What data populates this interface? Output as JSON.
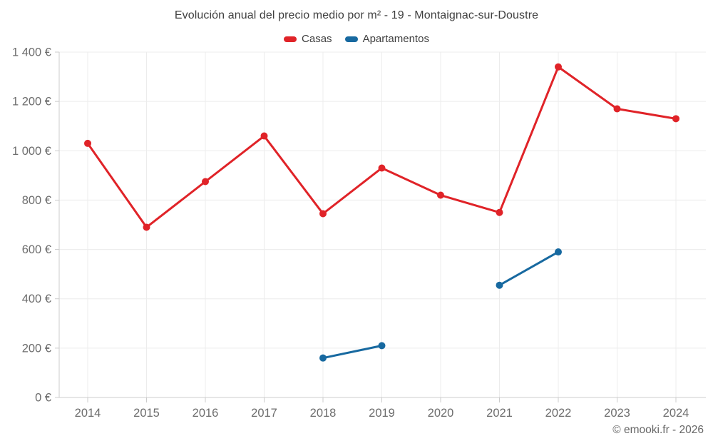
{
  "title": "Evolución anual del precio medio por m² - 19 - Montaignac-sur-Doustre",
  "attribution": "© emooki.fr - 2026",
  "chart_data": {
    "type": "line",
    "title": "Evolución anual del precio medio por m² - 19 - Montaignac-sur-Doustre",
    "xlabel": "",
    "ylabel": "",
    "categories": [
      "2014",
      "2015",
      "2016",
      "2017",
      "2018",
      "2019",
      "2020",
      "2021",
      "2022",
      "2023",
      "2024"
    ],
    "series": [
      {
        "name": "Casas",
        "color": "#e02328",
        "values": [
          1030,
          690,
          875,
          1060,
          745,
          930,
          820,
          750,
          1340,
          1170,
          1130
        ]
      },
      {
        "name": "Apartamentos",
        "color": "#1769a0",
        "values": [
          null,
          null,
          null,
          null,
          160,
          210,
          null,
          455,
          590,
          null,
          null
        ]
      }
    ],
    "ylim": [
      0,
      1400
    ],
    "y_ticks": [
      {
        "value": 0,
        "label": "0 €"
      },
      {
        "value": 200,
        "label": "200 €"
      },
      {
        "value": 400,
        "label": "400 €"
      },
      {
        "value": 600,
        "label": "600 €"
      },
      {
        "value": 800,
        "label": "800 €"
      },
      {
        "value": 1000,
        "label": "1 000 €"
      },
      {
        "value": 1200,
        "label": "1 200 €"
      },
      {
        "value": 1400,
        "label": "1 400 €"
      }
    ],
    "grid": true,
    "legend_position": "top-center"
  }
}
